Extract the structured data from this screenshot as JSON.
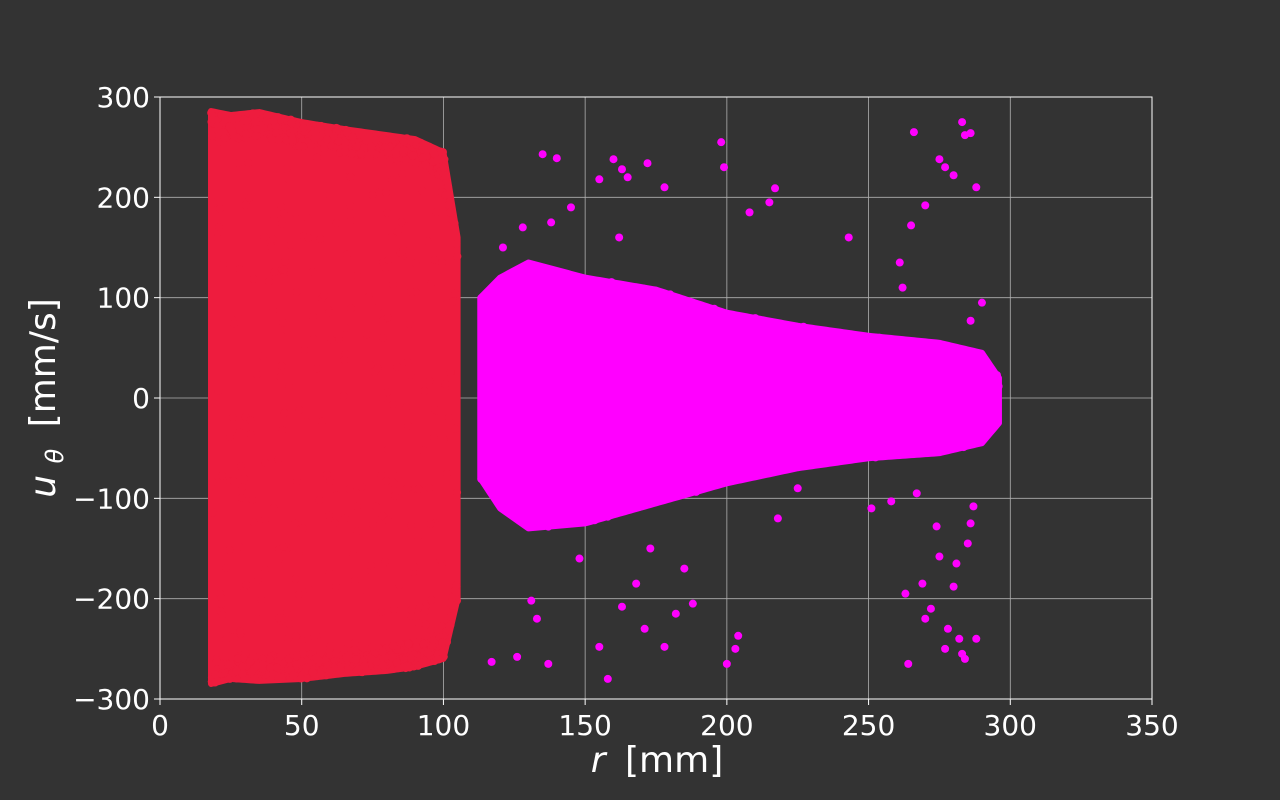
{
  "chart_data": {
    "type": "scatter",
    "title": "",
    "xlabel": {
      "symbol": "r",
      "unit": "[mm]"
    },
    "ylabel": {
      "symbol": "u",
      "subscript": "θ",
      "unit": "[mm/s]"
    },
    "xlim": [
      0,
      350
    ],
    "ylim": [
      -300,
      300
    ],
    "xticks": [
      0,
      50,
      100,
      150,
      200,
      250,
      300,
      350
    ],
    "yticks": [
      -300,
      -200,
      -100,
      0,
      100,
      200,
      300
    ],
    "grid": true,
    "series": [
      {
        "color": "#EE1C3E",
        "r_range": [
          18,
          105
        ],
        "u_range": [
          -285,
          286
        ],
        "envelope": [
          [
            18,
            -285,
            286
          ],
          [
            25,
            -280,
            282
          ],
          [
            35,
            -282,
            285
          ],
          [
            50,
            -280,
            275
          ],
          [
            65,
            -275,
            268
          ],
          [
            80,
            -272,
            262
          ],
          [
            90,
            -268,
            258
          ],
          [
            100,
            -260,
            245
          ],
          [
            105,
            -200,
            160
          ]
        ]
      },
      {
        "color": "#FF00FF",
        "r_range": [
          113,
          296
        ],
        "u_range": [
          -145,
          140
        ],
        "envelope": [
          [
            113,
            -80,
            100
          ],
          [
            120,
            -110,
            120
          ],
          [
            130,
            -130,
            135
          ],
          [
            150,
            -125,
            120
          ],
          [
            175,
            -105,
            108
          ],
          [
            200,
            -85,
            85
          ],
          [
            225,
            -70,
            72
          ],
          [
            250,
            -60,
            62
          ],
          [
            275,
            -55,
            55
          ],
          [
            290,
            -45,
            45
          ],
          [
            296,
            -25,
            20
          ]
        ],
        "outliers": [
          [
            135,
            243
          ],
          [
            140,
            239
          ],
          [
            155,
            218
          ],
          [
            160,
            238
          ],
          [
            163,
            228
          ],
          [
            165,
            220
          ],
          [
            172,
            234
          ],
          [
            178,
            210
          ],
          [
            198,
            255
          ],
          [
            199,
            230
          ],
          [
            208,
            185
          ],
          [
            215,
            195
          ],
          [
            217,
            209
          ],
          [
            243,
            160
          ],
          [
            265,
            172
          ],
          [
            266,
            265
          ],
          [
            270,
            192
          ],
          [
            275,
            238
          ],
          [
            277,
            230
          ],
          [
            280,
            222
          ],
          [
            283,
            275
          ],
          [
            284,
            262
          ],
          [
            286,
            264
          ],
          [
            288,
            210
          ],
          [
            138,
            175
          ],
          [
            145,
            190
          ],
          [
            162,
            160
          ],
          [
            128,
            170
          ],
          [
            262,
            110
          ],
          [
            261,
            135
          ],
          [
            290,
            95
          ],
          [
            286,
            77
          ],
          [
            121,
            150
          ],
          [
            131,
            -202
          ],
          [
            133,
            -220
          ],
          [
            137,
            -265
          ],
          [
            148,
            -160
          ],
          [
            155,
            -248
          ],
          [
            158,
            -280
          ],
          [
            163,
            -208
          ],
          [
            168,
            -185
          ],
          [
            171,
            -230
          ],
          [
            173,
            -150
          ],
          [
            178,
            -248
          ],
          [
            182,
            -215
          ],
          [
            185,
            -170
          ],
          [
            188,
            -205
          ],
          [
            200,
            -265
          ],
          [
            203,
            -250
          ],
          [
            204,
            -237
          ],
          [
            218,
            -120
          ],
          [
            258,
            -103
          ],
          [
            263,
            -195
          ],
          [
            264,
            -265
          ],
          [
            267,
            -95
          ],
          [
            269,
            -185
          ],
          [
            270,
            -220
          ],
          [
            272,
            -210
          ],
          [
            274,
            -128
          ],
          [
            275,
            -158
          ],
          [
            277,
            -250
          ],
          [
            278,
            -230
          ],
          [
            280,
            -188
          ],
          [
            281,
            -165
          ],
          [
            282,
            -240
          ],
          [
            283,
            -255
          ],
          [
            284,
            -260
          ],
          [
            285,
            -145
          ],
          [
            286,
            -125
          ],
          [
            287,
            -108
          ],
          [
            288,
            -240
          ],
          [
            126,
            -258
          ],
          [
            117,
            -263
          ],
          [
            225,
            -90
          ],
          [
            251,
            -110
          ]
        ]
      }
    ]
  }
}
